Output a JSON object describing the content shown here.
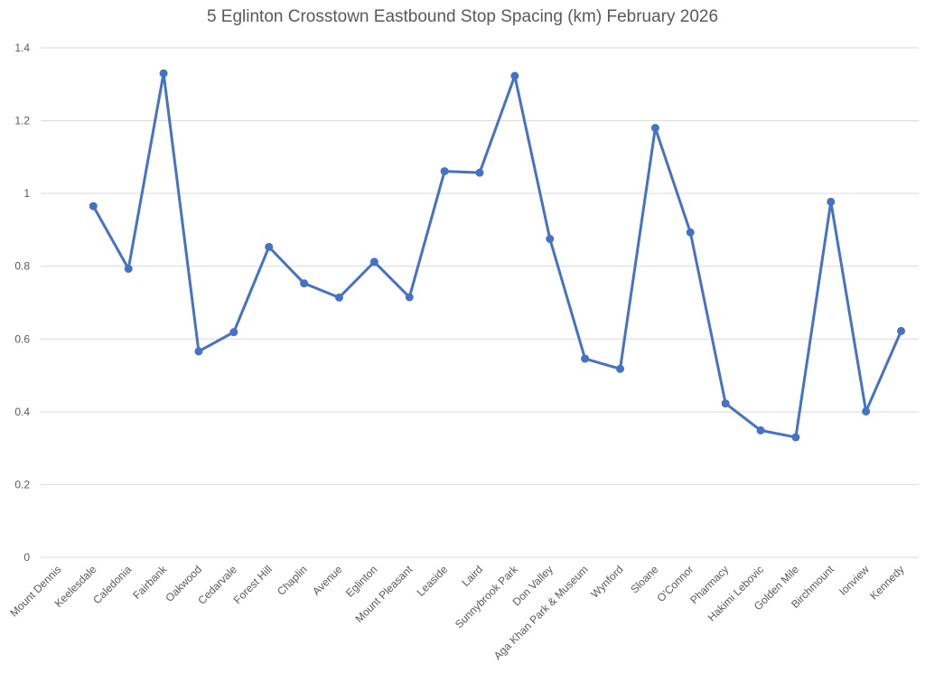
{
  "chart_data": {
    "type": "line",
    "title": "5 Eglinton Crosstown Eastbound Stop Spacing (km) February 2026",
    "xlabel": "",
    "ylabel": "",
    "ylim": [
      0,
      1.4
    ],
    "yticks": [
      0,
      0.2,
      0.4,
      0.6,
      0.8,
      1,
      1.2,
      1.4
    ],
    "ytick_labels": [
      "0",
      "0.2",
      "0.4",
      "0.6",
      "0.8",
      "1",
      "1.2",
      "1.4"
    ],
    "grid": true,
    "legend": "none",
    "color": "#4472c4",
    "categories": [
      "Mount Dennis",
      "Keelesdale",
      "Caledonia",
      "Fairbank",
      "Oakwood",
      "Cedarvale",
      "Forest Hill",
      "Chaplin",
      "Avenue",
      "Eglinton",
      "Mount Pleasant",
      "Leaside",
      "Laird",
      "Sunnybrook Park",
      "Don Valley",
      "Aga Khan Park & Museum",
      "Wynford",
      "Sloane",
      "O'Connor",
      "Pharmacy",
      "Hakimi Lebovic",
      "Golden Mile",
      "Birchmount",
      "Ionview",
      "Kennedy"
    ],
    "series": [
      {
        "values": [
          null,
          0.965,
          0.793,
          1.33,
          0.566,
          0.619,
          0.853,
          0.753,
          0.714,
          0.812,
          0.715,
          1.061,
          1.057,
          1.323,
          0.875,
          0.546,
          0.518,
          1.18,
          0.893,
          0.423,
          0.349,
          0.33,
          0.977,
          0.401,
          0.622
        ]
      }
    ]
  }
}
